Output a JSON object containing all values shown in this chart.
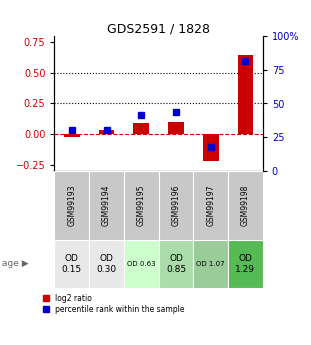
{
  "title": "GDS2591 / 1828",
  "samples": [
    "GSM99193",
    "GSM99194",
    "GSM99195",
    "GSM99196",
    "GSM99197",
    "GSM99198"
  ],
  "log2_ratio": [
    -0.02,
    0.03,
    0.09,
    0.1,
    -0.22,
    0.65
  ],
  "percentile_rank": [
    0.305,
    0.305,
    0.415,
    0.435,
    0.175,
    0.815
  ],
  "bar_color": "#cc0000",
  "dot_color": "#0000cc",
  "ylim_left": [
    -0.3,
    0.8
  ],
  "ylim_right": [
    0,
    100
  ],
  "yticks_left": [
    -0.25,
    0.0,
    0.25,
    0.5,
    0.75
  ],
  "yticks_right": [
    0,
    25,
    50,
    75,
    100
  ],
  "hlines": [
    0.0,
    0.25,
    0.5
  ],
  "hline_styles": [
    "--",
    ":",
    ":"
  ],
  "hline_colors": [
    "#cc0000",
    "#000000",
    "#000000"
  ],
  "age_labels": [
    "OD\n0.15",
    "OD\n0.30",
    "OD 0.63",
    "OD\n0.85",
    "OD 1.07",
    "OD\n1.29"
  ],
  "age_bg_colors": [
    "#e8e8e8",
    "#e8e8e8",
    "#ccffcc",
    "#aaddaa",
    "#99cc99",
    "#55bb55"
  ],
  "age_fontsize_large": [
    true,
    true,
    false,
    true,
    false,
    true
  ],
  "sample_bg_color": "#c8c8c8",
  "background_color": "#ffffff"
}
